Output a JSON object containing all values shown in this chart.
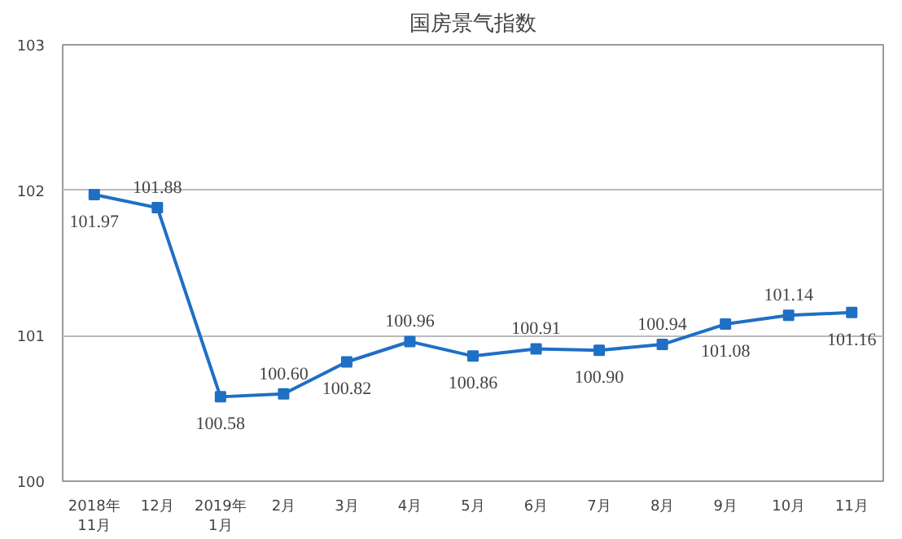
{
  "chart_data": {
    "type": "line",
    "title": "国房景气指数",
    "categories": [
      "2018年\n11月",
      "12月",
      "2019年\n1月",
      "2月",
      "3月",
      "4月",
      "5月",
      "6月",
      "7月",
      "8月",
      "9月",
      "10月",
      "11月"
    ],
    "series": [
      {
        "color": "#1f6fc5",
        "values": [
          101.97,
          101.88,
          100.58,
          100.6,
          100.82,
          100.96,
          100.86,
          100.91,
          100.9,
          100.94,
          101.08,
          101.14,
          101.16
        ],
        "value_labels": [
          "101.97",
          "101.88",
          "100.58",
          "100.60",
          "100.82",
          "100.96",
          "100.86",
          "100.91",
          "100.90",
          "100.94",
          "101.08",
          "101.14",
          "101.16"
        ]
      }
    ],
    "ylim": [
      100,
      103
    ],
    "yticks": [
      100,
      101,
      102,
      103
    ],
    "grid": "y",
    "marker": "square",
    "line_style": "solid"
  }
}
